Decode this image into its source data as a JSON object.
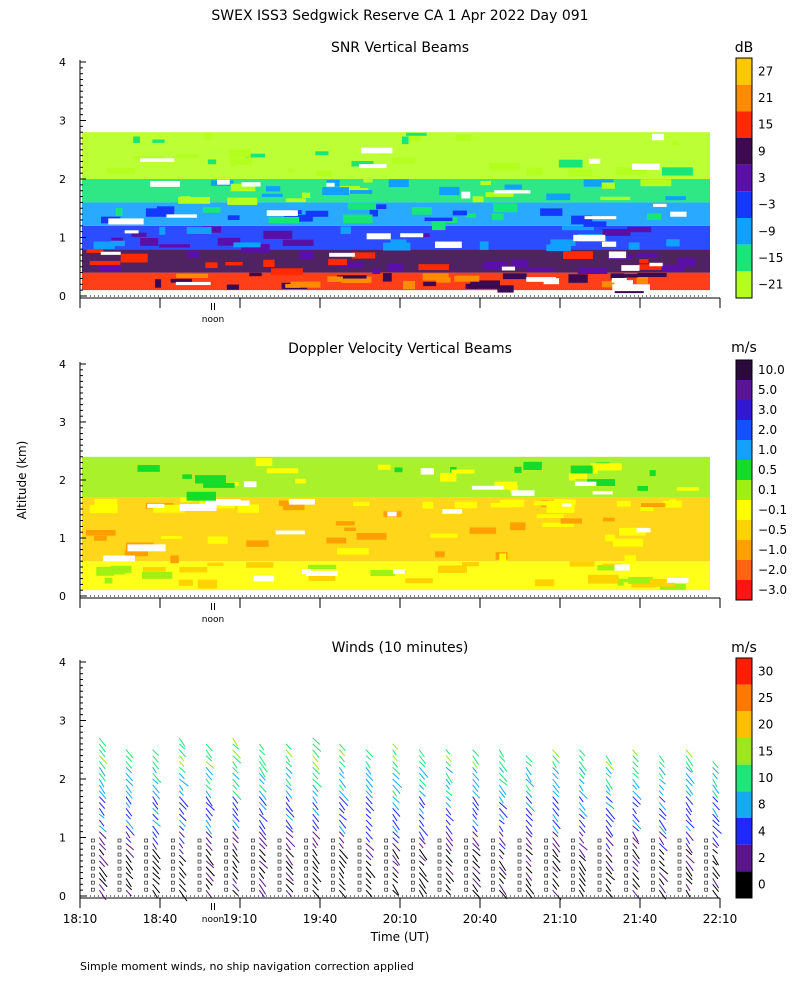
{
  "header": {
    "title": "SWEX ISS3 Sedgwick Reserve CA    1 Apr 2022 Day 091",
    "footnote": "Simple moment winds, no ship navigation correction applied",
    "shared_ylabel": "Altitude (km)",
    "xlabel": "Time (UT)",
    "noon_label": "noon",
    "noon_marker": "II"
  },
  "chart_data": [
    {
      "type": "heatmap",
      "title": "SNR Vertical Beams",
      "ylabel": "Altitude (km)",
      "ylim": [
        0,
        4
      ],
      "yticks": [
        "0",
        "1",
        "2",
        "3",
        "4"
      ],
      "colorbar": {
        "unit": "dB",
        "labels": [
          "27",
          "21",
          "15",
          "9",
          "3",
          "−3",
          "−9",
          "−15",
          "−21"
        ],
        "colors": [
          "#ffc800",
          "#ff8c00",
          "#ff2a00",
          "#3c0a50",
          "#5a10a8",
          "#1438ff",
          "#12a0ff",
          "#18e678",
          "#b4ff1e"
        ]
      },
      "layers": [
        {
          "from_km": 0.1,
          "to_km": 0.4,
          "level_db": 15
        },
        {
          "from_km": 0.4,
          "to_km": 0.8,
          "level_db": 9
        },
        {
          "from_km": 0.8,
          "to_km": 1.2,
          "level_db": -3
        },
        {
          "from_km": 1.2,
          "to_km": 1.6,
          "level_db": -9
        },
        {
          "from_km": 1.6,
          "to_km": 2.0,
          "level_db": -15
        },
        {
          "from_km": 2.0,
          "to_km": 2.8,
          "level_db": -21
        }
      ]
    },
    {
      "type": "heatmap",
      "title": "Doppler Velocity Vertical Beams",
      "ylabel": "Altitude (km)",
      "ylim": [
        0,
        4
      ],
      "yticks": [
        "0",
        "1",
        "2",
        "3",
        "4"
      ],
      "colorbar": {
        "unit": "m/s",
        "labels": [
          "10.0",
          "5.0",
          "3.0",
          "2.0",
          "1.0",
          "0.5",
          "0.1",
          "−0.1",
          "−0.5",
          "−1.0",
          "−2.0",
          "−3.0"
        ],
        "colors": [
          "#2a0a3c",
          "#5a1496",
          "#3218d2",
          "#1450ff",
          "#14a0ff",
          "#14dc28",
          "#a0f014",
          "#ffff00",
          "#ffd200",
          "#ffa000",
          "#ff6414",
          "#ff1414"
        ]
      },
      "layers": [
        {
          "from_km": 0.1,
          "to_km": 0.6,
          "level_ms": -0.1
        },
        {
          "from_km": 0.6,
          "to_km": 1.5,
          "level_ms": -0.5
        },
        {
          "from_km": 1.5,
          "to_km": 1.7,
          "level_ms": -0.5
        },
        {
          "from_km": 1.7,
          "to_km": 2.4,
          "level_ms": 0.1
        }
      ]
    },
    {
      "type": "scatter",
      "subtype": "wind_barbs",
      "title": "Winds (10 minutes)",
      "ylabel": "Altitude (km)",
      "xlabel": "Time (UT)",
      "ylim": [
        0,
        4
      ],
      "xlim_min_utc": [
        1090,
        1330
      ],
      "yticks": [
        "0",
        "1",
        "2",
        "3",
        "4"
      ],
      "xticks": [
        "18:10",
        "18:40",
        "19:10",
        "19:40",
        "20:10",
        "20:40",
        "21:10",
        "21:40",
        "22:10"
      ],
      "profile_times_utc": [
        "18:15",
        "18:25",
        "18:35",
        "18:45",
        "18:55",
        "19:05",
        "19:15",
        "19:25",
        "19:35",
        "19:45",
        "19:55",
        "20:05",
        "20:15",
        "20:25",
        "20:35",
        "20:45",
        "20:55",
        "21:05",
        "21:15",
        "21:25",
        "21:35",
        "21:45",
        "21:55",
        "22:05"
      ],
      "profile_top_km": [
        2.8,
        2.6,
        2.6,
        2.8,
        2.7,
        2.8,
        2.7,
        2.7,
        2.8,
        2.7,
        2.6,
        2.7,
        2.6,
        2.6,
        2.6,
        2.6,
        2.5,
        2.6,
        2.6,
        2.5,
        2.6,
        2.5,
        2.6,
        2.4
      ],
      "colorbar": {
        "unit": "m/s",
        "labels": [
          "30",
          "25",
          "20",
          "15",
          "10",
          "8",
          "4",
          "2",
          "0"
        ],
        "colors": [
          "#ff1e00",
          "#ff7800",
          "#ffbe00",
          "#a0e61e",
          "#1ee678",
          "#14aaf0",
          "#1e28ff",
          "#5a148c",
          "#000000"
        ]
      }
    }
  ]
}
